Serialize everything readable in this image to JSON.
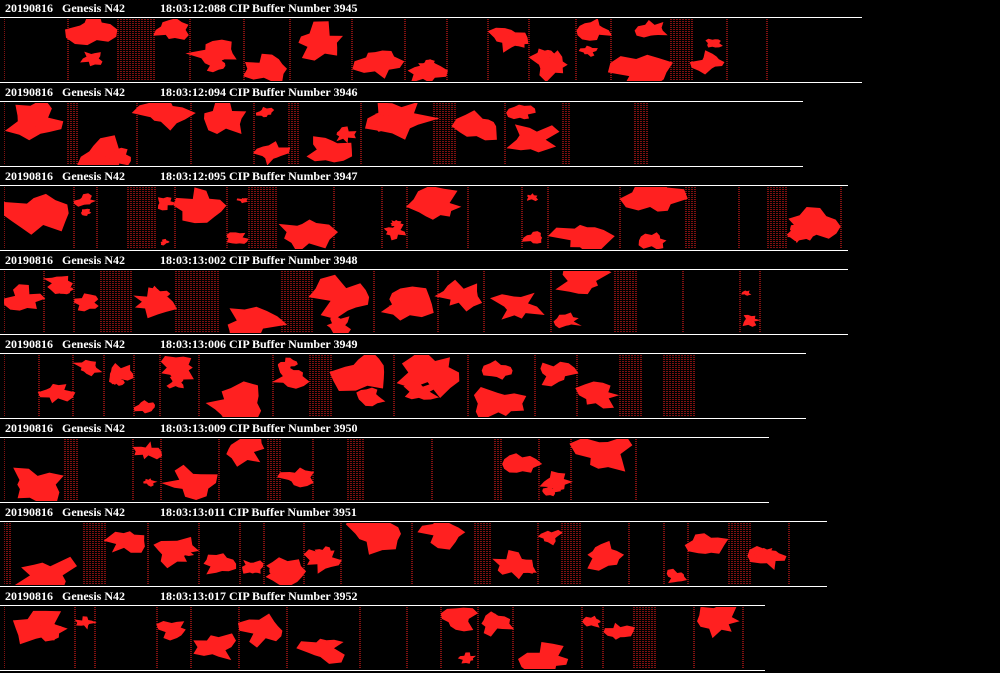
{
  "accent_color": "#ff2020",
  "strips": [
    {
      "date": "20190816",
      "probe": "Genesis N42",
      "time_label": "18:03:12:088 CIP Buffer Number 3945"
    },
    {
      "date": "20190816",
      "probe": "Genesis N42",
      "time_label": "18:03:12:094 CIP Buffer Number 3946"
    },
    {
      "date": "20190816",
      "probe": "Genesis N42",
      "time_label": "18:03:12:095 CIP Buffer Number 3947"
    },
    {
      "date": "20190816",
      "probe": "Genesis N42",
      "time_label": "18:03:13:002 CIP Buffer Number 3948"
    },
    {
      "date": "20190816",
      "probe": "Genesis N42",
      "time_label": "18:03:13:006 CIP Buffer Number 3949"
    },
    {
      "date": "20190816",
      "probe": "Genesis N42",
      "time_label": "18:03:13:009 CIP Buffer Number 3950"
    },
    {
      "date": "20190816",
      "probe": "Genesis N42",
      "time_label": "18:03:13:011 CIP Buffer Number 3951"
    },
    {
      "date": "20190816",
      "probe": "Genesis N42",
      "time_label": "18:03:13:017 CIP Buffer Number 3952"
    }
  ]
}
